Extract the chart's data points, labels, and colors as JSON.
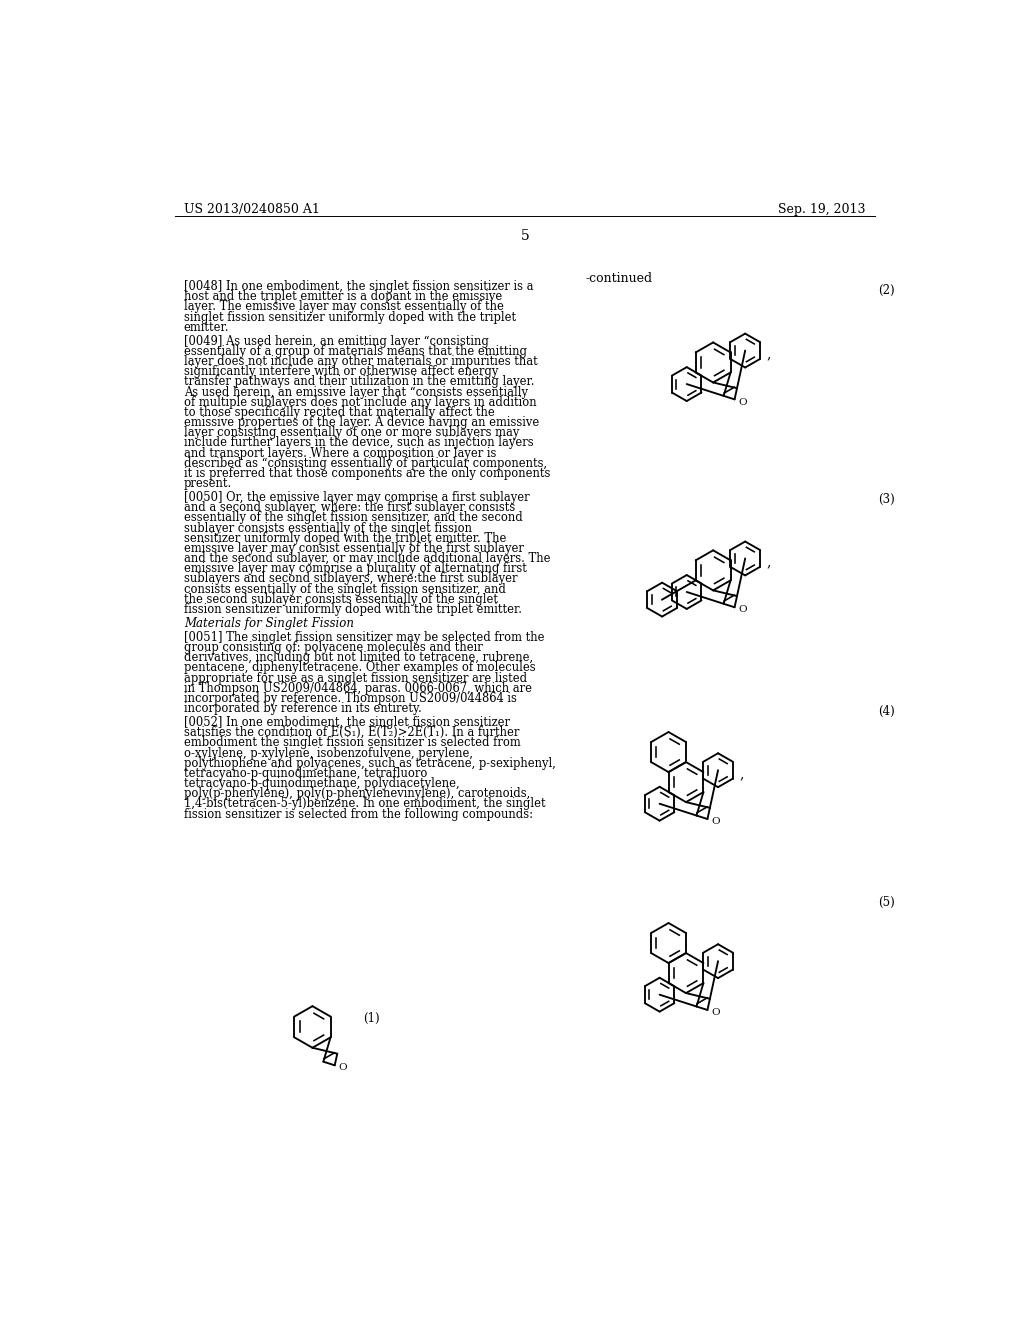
{
  "header_left": "US 2013/0240850 A1",
  "header_right": "Sep. 19, 2013",
  "page_number": "5",
  "continued_label": "-continued",
  "background_color": "#ffffff",
  "text_color": "#000000",
  "paragraphs": [
    {
      "tag": "[0048]",
      "text": "In one embodiment, the singlet fission sensitizer is a host and the triplet emitter is a dopant in the emissive layer. The emissive layer may consist essentially of the singlet fission sensitizer uniformly doped with the triplet emitter."
    },
    {
      "tag": "[0049]",
      "text": "As used herein, an emitting layer “consisting essentially of a group of materials means that the emitting layer does not include any other materials or impurities that significantly interfere with or otherwise affect energy transfer pathways and their utilization in the emitting layer. As used herein, an emissive layer that “consists essentially of multiple sublayers does not include any layers in addition to those specifically recited that materially affect the emissive properties of the layer. A device having an emissive layer consisting essentially of one or more sublayers may include further layers in the device, such as injection layers and transport layers. Where a composition or layer is described as “consisting essentially of particular components, it is preferred that those components are the only components present."
    },
    {
      "tag": "[0050]",
      "text": "Or, the emissive layer may comprise a first sublayer and a second sublayer, where: the first sublayer consists essentially of the singlet fission sensitizer, and the second sublayer consists essentially of the singlet fission sensitizer uniformly doped with the triplet emitter. The emissive layer may consist essentially of the first sublayer and the second sublayer, or may include additional layers. The emissive layer may comprise a plurality of alternating first sublayers and second sublayers, where:the first sublayer consists essentially of the singlet fission sensitizer, and the second sublayer consists essentially of the singlet fission sensitizer uniformly doped with the triplet emitter."
    },
    {
      "tag": "Materials for Singlet Fission",
      "text": ""
    },
    {
      "tag": "[0051]",
      "text": "The singlet fission sensitizer may be selected from the group consisting of: polyacene molecules and their derivatives, including but not limited to tetracene, rubrene, pentacene, diphenyltetracene. Other examples of molecules appropriate for use as a singlet fission sensitizer are listed in Thompson US2009/044864, paras. 0066-0067, which are incorporated by reference. Thompson US2009/044864 is incorporated by reference in its entirety."
    },
    {
      "tag": "[0052]",
      "text": "In one embodiment, the singlet fission sensitizer satisfies the condition of E(S₁), E(T₂)>2E(T₁). In a further embodiment the singlet fission sensitizer is selected from o-xylylene, p-xylylene, isobenzofulvene, perylene, polythiophene and polyacenes, such as tetracene, p-sexiphenyl, tetracyano-p-quinodimethane, tetrafluoro tetracyano-p-quinodimethane, polydiacetylene, poly(p-phenylene), poly(p-phenylenevinylene), carotenoids, 1,4-bis(tetracen-5-yl)benzene. In one embodiment, the singlet fission sensitizer is selected from the following compounds:"
    }
  ]
}
